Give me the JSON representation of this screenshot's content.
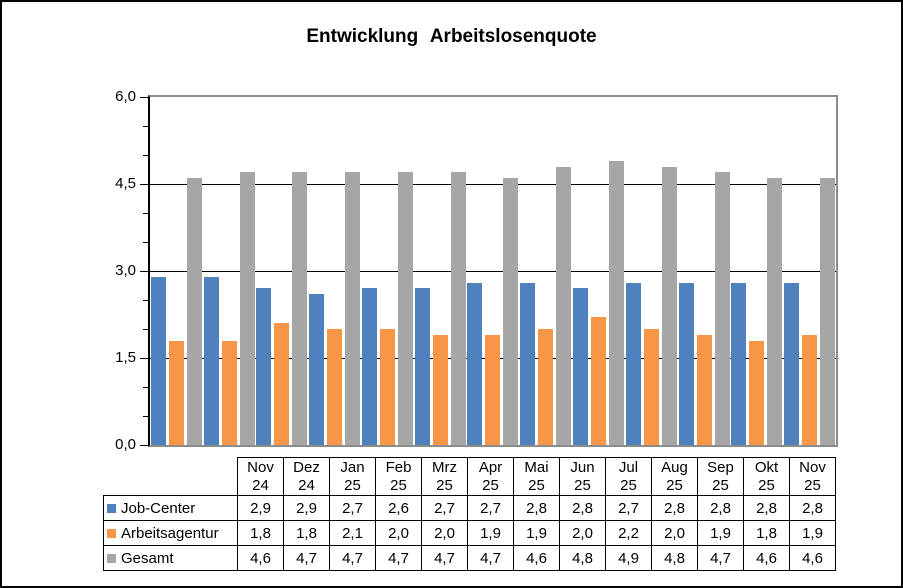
{
  "title": "Entwicklung Arbeitslosenquote",
  "colors": {
    "job_center_blue": "#4F81BD",
    "arbeitsagentur_orange": "#F79646",
    "gesamt_gray": "#A6A6A6",
    "plot_border_gray": "#8C8C8C",
    "gridline_black": "#000000"
  },
  "y_axis": {
    "min": 0,
    "max": 6,
    "major_tick_values": [
      0,
      1.5,
      3,
      4.5,
      6
    ],
    "major_tick_labels": [
      "0,0",
      "1,5",
      "3,0",
      "4,5",
      "6,0"
    ],
    "minor_tick_values": [
      0.5,
      1,
      2,
      2.5,
      3.5,
      4,
      5,
      5.5
    ]
  },
  "chart_data": {
    "type": "bar",
    "title": "Entwicklung Arbeitslosenquote",
    "categories": [
      "Nov 24",
      "Dez 24",
      "Jan 25",
      "Feb 25",
      "Mrz 25",
      "Apr 25",
      "Mai 25",
      "Jun 25",
      "Jul 25",
      "Aug 25",
      "Sep 25",
      "Okt 25",
      "Nov 25"
    ],
    "series": [
      {
        "name": "Job-Center",
        "color": "#4F81BD",
        "values": [
          2.9,
          2.9,
          2.7,
          2.6,
          2.7,
          2.7,
          2.8,
          2.8,
          2.7,
          2.8,
          2.8,
          2.8,
          2.8
        ]
      },
      {
        "name": "Arbeitsagentur",
        "color": "#F79646",
        "values": [
          1.8,
          1.8,
          2.1,
          2.0,
          2.0,
          1.9,
          1.9,
          2.0,
          2.2,
          2.0,
          1.9,
          1.8,
          1.9
        ]
      },
      {
        "name": "Gesamt",
        "color": "#A6A6A6",
        "values": [
          4.6,
          4.7,
          4.7,
          4.7,
          4.7,
          4.7,
          4.6,
          4.8,
          4.9,
          4.8,
          4.7,
          4.6,
          4.6
        ]
      }
    ],
    "ylim": [
      0,
      6
    ],
    "grid": true,
    "legend_position": "data-table-left-column",
    "value_format": "decimal-comma"
  },
  "table": {
    "header_line1": [
      "Nov",
      "Dez",
      "Jan",
      "Feb",
      "Mrz",
      "Apr",
      "Mai",
      "Jun",
      "Jul",
      "Aug",
      "Sep",
      "Okt",
      "Nov"
    ],
    "header_line2": [
      "24",
      "24",
      "25",
      "25",
      "25",
      "25",
      "25",
      "25",
      "25",
      "25",
      "25",
      "25",
      "25"
    ],
    "row_labels": [
      "Job-Center",
      "Arbeitsagentur",
      "Gesamt"
    ],
    "display_values": [
      [
        "2,9",
        "2,9",
        "2,7",
        "2,6",
        "2,7",
        "2,7",
        "2,8",
        "2,8",
        "2,7",
        "2,8",
        "2,8",
        "2,8",
        "2,8"
      ],
      [
        "1,8",
        "1,8",
        "2,1",
        "2,0",
        "2,0",
        "1,9",
        "1,9",
        "2,0",
        "2,2",
        "2,0",
        "1,9",
        "1,8",
        "1,9"
      ],
      [
        "4,6",
        "4,7",
        "4,7",
        "4,7",
        "4,7",
        "4,7",
        "4,6",
        "4,8",
        "4,9",
        "4,8",
        "4,7",
        "4,6",
        "4,6"
      ]
    ]
  }
}
